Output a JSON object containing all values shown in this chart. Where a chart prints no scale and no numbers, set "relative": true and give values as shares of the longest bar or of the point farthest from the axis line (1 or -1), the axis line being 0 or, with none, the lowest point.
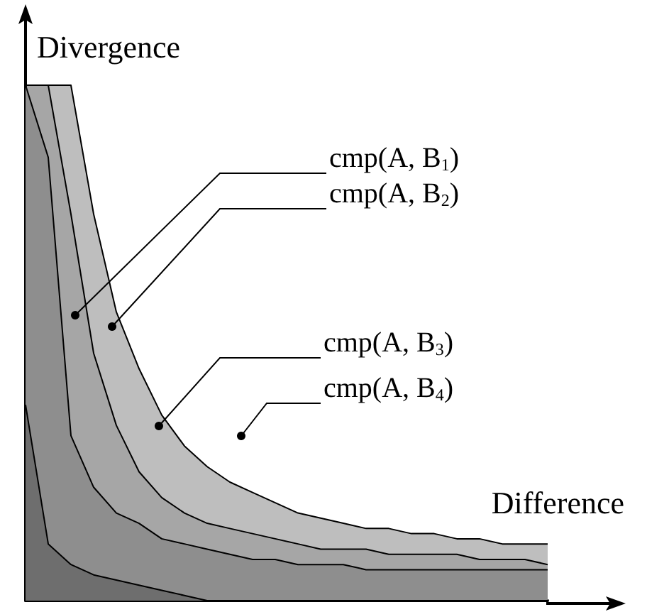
{
  "chart_data": {
    "type": "area",
    "relative": true,
    "stacked": true,
    "xlabel": "Difference",
    "ylabel": "Divergence",
    "marker": "none",
    "categories": [
      null,
      null,
      null,
      null,
      null,
      null,
      null,
      null,
      null,
      null,
      null,
      null,
      null,
      null,
      null,
      null,
      null,
      null,
      null,
      null,
      null,
      null,
      null,
      null
    ],
    "series": [
      {
        "color": "#6e6e6e",
        "values": [
          0.38,
          0.11,
          0.07,
          0.05,
          0.04,
          0.03,
          0.02,
          0.01,
          0,
          0,
          0,
          0,
          0,
          0,
          0,
          0,
          0,
          0,
          0,
          0,
          0,
          0,
          0,
          0
        ]
      },
      {
        "color": "#8e8e8e",
        "values": [
          0.62,
          0.75,
          0.25,
          0.17,
          0.13,
          0.12,
          0.1,
          0.1,
          0.1,
          0.09,
          0.08,
          0.08,
          0.07,
          0.07,
          0.07,
          0.06,
          0.06,
          0.06,
          0.06,
          0.06,
          0.06,
          0.06,
          0.06,
          0.06
        ]
      },
      {
        "color": "#a6a6a6",
        "values": [
          0,
          0.14,
          0.43,
          0.26,
          0.17,
          0.1,
          0.08,
          0.06,
          0.05,
          0.05,
          0.05,
          0.04,
          0.04,
          0.03,
          0.03,
          0.04,
          0.03,
          0.03,
          0.03,
          0.03,
          0.02,
          0.02,
          0.02,
          0.01
        ]
      },
      {
        "color": "#bebebe",
        "values": [
          0,
          0,
          0.25,
          0.27,
          0.22,
          0.2,
          0.16,
          0.13,
          0.11,
          0.09,
          0.08,
          0.07,
          0.06,
          0.06,
          0.05,
          0.04,
          0.05,
          0.04,
          0.04,
          0.03,
          0.04,
          0.03,
          0.03,
          0.04
        ]
      }
    ],
    "annotations": [
      "cmp(A, B$_{1}$)",
      "cmp(A, B$_{2}$)",
      "cmp(A, B$_{3}$)",
      "cmp(A, B$_{4}$)"
    ]
  }
}
